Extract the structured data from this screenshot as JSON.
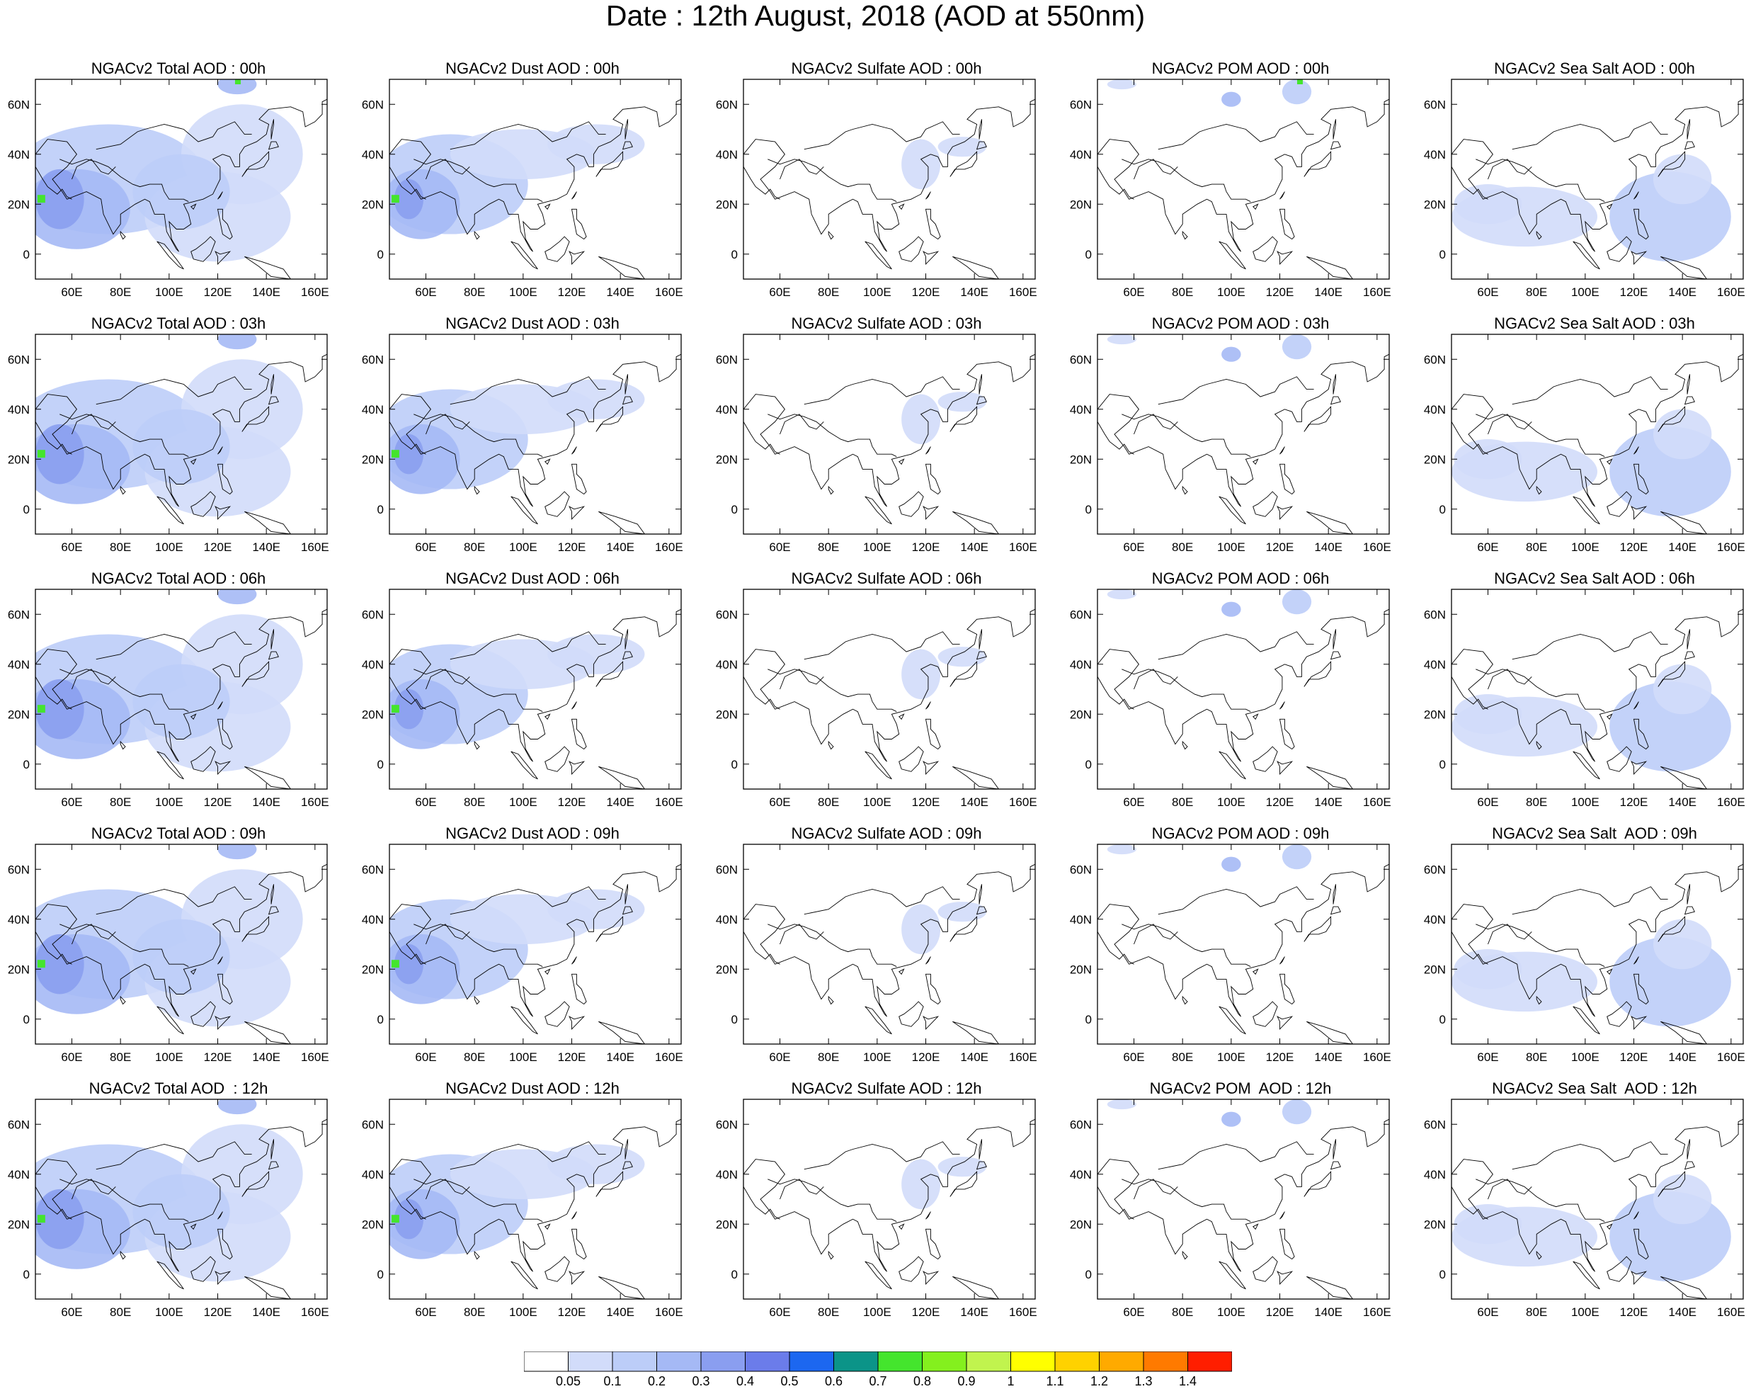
{
  "title": "Date : 12th August, 2018 (AOD at 550nm)",
  "panels": [
    [
      "NGACv2 Total AOD : 00h",
      "NGACv2 Dust AOD : 00h",
      "NGACv2 Sulfate AOD : 00h",
      "NGACv2 POM AOD : 00h",
      "NGACv2 Sea Salt AOD : 00h"
    ],
    [
      "NGACv2 Total AOD : 03h",
      "NGACv2 Dust AOD : 03h",
      "NGACv2 Sulfate AOD : 03h",
      "NGACv2 POM AOD : 03h",
      "NGACv2 Sea Salt AOD : 03h"
    ],
    [
      "NGACv2 Total AOD : 06h",
      "NGACv2 Dust AOD : 06h",
      "NGACv2 Sulfate AOD : 06h",
      "NGACv2 POM AOD : 06h",
      "NGACv2 Sea Salt AOD : 06h"
    ],
    [
      "NGACv2 Total AOD : 09h",
      "NGACv2 Dust AOD : 09h",
      "NGACv2 Sulfate AOD : 09h",
      "NGACv2 POM AOD : 09h",
      "NGACv2 Sea Salt  AOD : 09h"
    ],
    [
      "NGACv2 Total AOD  : 12h",
      "NGACv2 Dust AOD : 12h",
      "NGACv2 Sulfate AOD : 12h",
      "NGACv2 POM  AOD : 12h",
      "NGACv2 Sea Salt  AOD : 12h"
    ]
  ],
  "lon_ticks": [
    "60E",
    "80E",
    "100E",
    "120E",
    "140E",
    "160E"
  ],
  "lat_ticks": [
    "60N",
    "40N",
    "20N",
    "0"
  ],
  "colorbar": {
    "labels": [
      "0.05",
      "0.1",
      "0.2",
      "0.3",
      "0.4",
      "0.5",
      "0.6",
      "0.7",
      "0.8",
      "0.9",
      "1",
      "1.1",
      "1.2",
      "1.3",
      "1.4"
    ],
    "colors": [
      "#ffffff",
      "#d2dcfa",
      "#bccdf8",
      "#a5b9f5",
      "#8a9ef0",
      "#6b7cea",
      "#1c67f0",
      "#0b9488",
      "#44e52d",
      "#84f01e",
      "#c1f44e",
      "#ffff00",
      "#ffd200",
      "#ffaa00",
      "#ff7a00",
      "#ff1e00"
    ]
  }
}
